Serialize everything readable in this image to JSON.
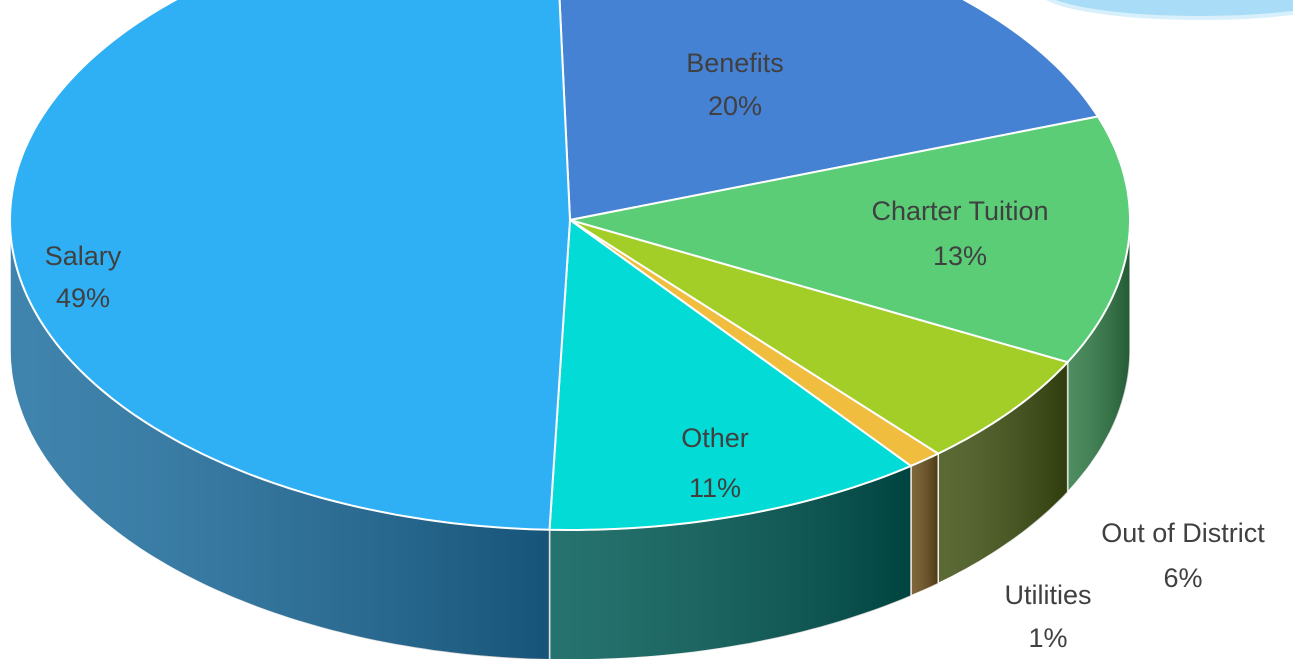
{
  "chart_data": {
    "type": "pie3d",
    "categories": [
      "Benefits",
      "Charter Tuition",
      "Out of District",
      "Utilities",
      "Other",
      "Salary"
    ],
    "values": [
      20,
      13,
      6,
      1,
      11,
      49
    ],
    "value_labels": [
      "20%",
      "13%",
      "6%",
      "1%",
      "11%",
      "49%"
    ],
    "colors": [
      "#4682d4",
      "#5bcd77",
      "#a3cd27",
      "#f0bd3f",
      "#03dcd6",
      "#2fb0f5"
    ],
    "side_colors": [
      "#2c5a99",
      "#2f7a45",
      "#3f5112",
      "#6a4d1a",
      "#005a55",
      "#1e6fa0"
    ]
  }
}
